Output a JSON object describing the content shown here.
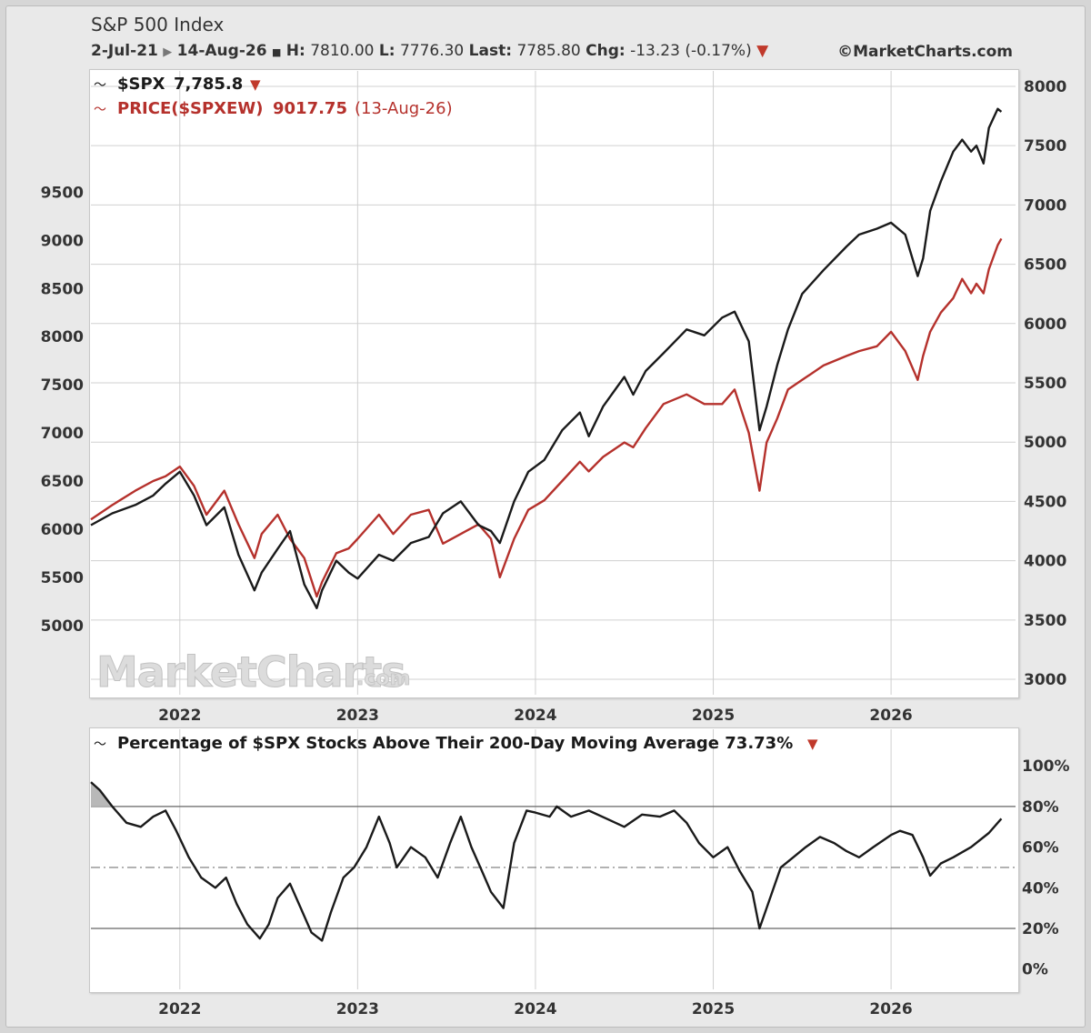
{
  "header": {
    "title": "S&P 500 Index",
    "date_range_start": "2-Jul-21",
    "date_range_end": "14-Aug-26",
    "h_label": "H:",
    "high": "7810.00",
    "l_label": "L:",
    "low": "7776.30",
    "last_label": "Last:",
    "last": "7785.80",
    "chg_label": "Chg:",
    "change": "-13.23 (-0.17%)",
    "credit": "©MarketCharts.com"
  },
  "watermark": {
    "main": "MarketCharts",
    "suffix": ".com"
  },
  "colors": {
    "spx": "#1a1a1a",
    "spxew": "#b5312c",
    "down_marker": "#c0392b",
    "grid": "#d0d0d0"
  },
  "chart_data": [
    {
      "type": "line",
      "legend": [
        {
          "symbol": "$SPX",
          "value": "7,785.8",
          "marker": "down-triangle"
        },
        {
          "symbol": "PRICE($SPXEW)",
          "value": "9017.75",
          "date": "(13-Aug-26)"
        }
      ],
      "x_ticks": [
        "2022",
        "2023",
        "2024",
        "2025",
        "2026"
      ],
      "x_tick_dates": [
        2022.0,
        2023.0,
        2024.0,
        2025.0,
        2026.0
      ],
      "xlim": [
        2021.5,
        2026.7
      ],
      "left_axis": {
        "series": "PRICE($SPXEW)",
        "ylim": [
          4280,
          10760
        ],
        "ticks": [
          5000,
          5500,
          6000,
          6500,
          7000,
          7500,
          8000,
          8500,
          9000,
          9500
        ]
      },
      "right_axis": {
        "series": "$SPX",
        "ylim": [
          2870,
          8130
        ],
        "ticks": [
          3000,
          3500,
          4000,
          4500,
          5000,
          5500,
          6000,
          6500,
          7000,
          7500,
          8000
        ]
      },
      "series": [
        {
          "name": "$SPX",
          "axis": "right",
          "x": [
            2021.5,
            2021.62,
            2021.75,
            2021.85,
            2021.92,
            2022.0,
            2022.08,
            2022.15,
            2022.25,
            2022.33,
            2022.42,
            2022.46,
            2022.55,
            2022.62,
            2022.7,
            2022.77,
            2022.8,
            2022.88,
            2022.95,
            2023.0,
            2023.12,
            2023.2,
            2023.3,
            2023.4,
            2023.48,
            2023.58,
            2023.68,
            2023.75,
            2023.8,
            2023.88,
            2023.96,
            2024.05,
            2024.15,
            2024.25,
            2024.3,
            2024.38,
            2024.5,
            2024.55,
            2024.62,
            2024.72,
            2024.85,
            2024.95,
            2025.05,
            2025.12,
            2025.2,
            2025.26,
            2025.3,
            2025.36,
            2025.42,
            2025.5,
            2025.62,
            2025.75,
            2025.82,
            2025.92,
            2026.0,
            2026.08,
            2026.15,
            2026.18,
            2026.22,
            2026.28,
            2026.35,
            2026.4,
            2026.45,
            2026.48,
            2026.52,
            2026.55,
            2026.6,
            2026.62
          ],
          "y": [
            4300,
            4400,
            4470,
            4550,
            4650,
            4750,
            4550,
            4300,
            4450,
            4050,
            3750,
            3900,
            4100,
            4250,
            3800,
            3600,
            3750,
            4000,
            3900,
            3850,
            4050,
            4000,
            4150,
            4200,
            4400,
            4500,
            4300,
            4250,
            4150,
            4500,
            4750,
            4850,
            5100,
            5250,
            5050,
            5300,
            5550,
            5400,
            5600,
            5750,
            5950,
            5900,
            6050,
            6100,
            5850,
            5100,
            5300,
            5650,
            5950,
            6250,
            6450,
            6650,
            6750,
            6800,
            6850,
            6750,
            6400,
            6550,
            6950,
            7200,
            7450,
            7550,
            7450,
            7500,
            7350,
            7650,
            7810,
            7786
          ]
        },
        {
          "name": "PRICE($SPXEW)",
          "axis": "left",
          "x": [
            2021.5,
            2021.62,
            2021.75,
            2021.85,
            2021.92,
            2022.0,
            2022.08,
            2022.15,
            2022.25,
            2022.33,
            2022.42,
            2022.46,
            2022.55,
            2022.62,
            2022.7,
            2022.77,
            2022.8,
            2022.88,
            2022.95,
            2023.0,
            2023.12,
            2023.2,
            2023.3,
            2023.4,
            2023.48,
            2023.58,
            2023.68,
            2023.75,
            2023.8,
            2023.88,
            2023.96,
            2024.05,
            2024.15,
            2024.25,
            2024.3,
            2024.38,
            2024.5,
            2024.55,
            2024.62,
            2024.72,
            2024.85,
            2024.95,
            2025.05,
            2025.12,
            2025.2,
            2025.26,
            2025.3,
            2025.36,
            2025.42,
            2025.5,
            2025.62,
            2025.75,
            2025.82,
            2025.92,
            2026.0,
            2026.08,
            2026.15,
            2026.18,
            2026.22,
            2026.28,
            2026.35,
            2026.4,
            2026.45,
            2026.48,
            2026.52,
            2026.55,
            2026.6,
            2026.62
          ],
          "y": [
            6100,
            6250,
            6400,
            6500,
            6550,
            6650,
            6450,
            6150,
            6400,
            6050,
            5700,
            5950,
            6150,
            5900,
            5700,
            5300,
            5450,
            5750,
            5800,
            5900,
            6150,
            5950,
            6150,
            6200,
            5850,
            5950,
            6050,
            5900,
            5500,
            5900,
            6200,
            6300,
            6500,
            6700,
            6600,
            6750,
            6900,
            6850,
            7050,
            7300,
            7400,
            7300,
            7300,
            7450,
            7000,
            6400,
            6900,
            7150,
            7450,
            7550,
            7700,
            7800,
            7850,
            7900,
            8050,
            7850,
            7550,
            7800,
            8050,
            8250,
            8400,
            8600,
            8450,
            8550,
            8450,
            8700,
            8950,
            9018
          ]
        }
      ]
    },
    {
      "type": "line",
      "title": "Percentage of $SPX Stocks Above Their 200-Day Moving Average 73.73%",
      "x_ticks": [
        "2022",
        "2023",
        "2024",
        "2025",
        "2026"
      ],
      "x_tick_dates": [
        2022.0,
        2023.0,
        2024.0,
        2025.0,
        2026.0
      ],
      "xlim": [
        2021.5,
        2026.7
      ],
      "ylim": [
        -10,
        118
      ],
      "y_ticks": [
        "0%",
        "20%",
        "40%",
        "60%",
        "80%",
        "100%"
      ],
      "y_tick_values": [
        0,
        20,
        40,
        60,
        80,
        100
      ],
      "reference_lines": {
        "solid": [
          20,
          80
        ],
        "dashdot": [
          50
        ]
      },
      "series": [
        {
          "name": "Percentage of $SPX Stocks Above Their 200-Day Moving Average",
          "x": [
            2021.5,
            2021.55,
            2021.62,
            2021.7,
            2021.78,
            2021.85,
            2021.92,
            2021.98,
            2022.05,
            2022.12,
            2022.2,
            2022.26,
            2022.32,
            2022.38,
            2022.45,
            2022.5,
            2022.55,
            2022.62,
            2022.68,
            2022.74,
            2022.8,
            2022.85,
            2022.92,
            2022.98,
            2023.05,
            2023.12,
            2023.18,
            2023.22,
            2023.3,
            2023.38,
            2023.45,
            2023.52,
            2023.58,
            2023.64,
            2023.7,
            2023.75,
            2023.82,
            2023.88,
            2023.95,
            2024.0,
            2024.08,
            2024.12,
            2024.2,
            2024.3,
            2024.4,
            2024.5,
            2024.6,
            2024.7,
            2024.78,
            2024.85,
            2024.92,
            2025.0,
            2025.08,
            2025.15,
            2025.22,
            2025.26,
            2025.3,
            2025.38,
            2025.45,
            2025.52,
            2025.6,
            2025.68,
            2025.75,
            2025.82,
            2025.9,
            2026.0,
            2026.05,
            2026.12,
            2026.18,
            2026.22,
            2026.28,
            2026.35,
            2026.45,
            2026.55,
            2026.62
          ],
          "y": [
            92,
            88,
            80,
            72,
            70,
            75,
            78,
            68,
            55,
            45,
            40,
            45,
            32,
            22,
            15,
            22,
            35,
            42,
            30,
            18,
            14,
            28,
            45,
            50,
            60,
            75,
            62,
            50,
            60,
            55,
            45,
            62,
            75,
            60,
            48,
            38,
            30,
            62,
            78,
            77,
            75,
            80,
            75,
            78,
            74,
            70,
            76,
            75,
            78,
            72,
            62,
            55,
            60,
            48,
            38,
            20,
            30,
            50,
            55,
            60,
            65,
            62,
            58,
            55,
            60,
            66,
            68,
            66,
            55,
            46,
            52,
            55,
            60,
            67,
            74
          ]
        }
      ]
    }
  ]
}
